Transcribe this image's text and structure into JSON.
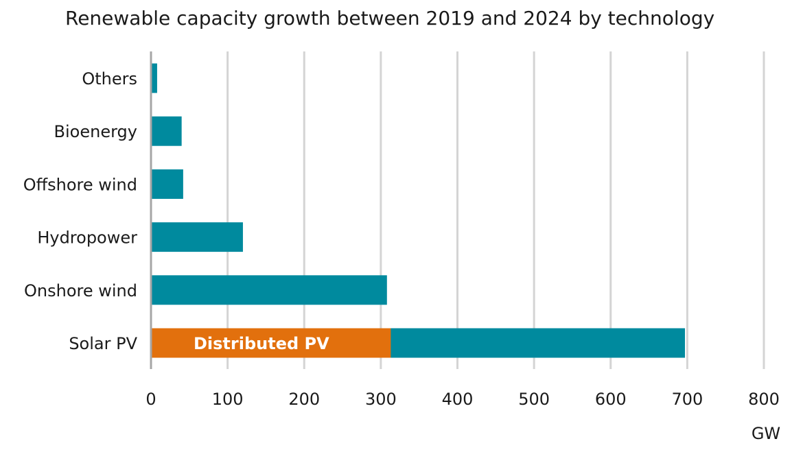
{
  "chart_data": {
    "type": "bar",
    "orientation": "horizontal",
    "stacked": true,
    "title": "Renewable capacity growth between 2019 and 2024 by technology",
    "categories": [
      "Others",
      "Bioenergy",
      "Offshore wind",
      "Hydropower",
      "Onshore wind",
      "Solar PV"
    ],
    "series": [
      {
        "values": [
          8,
          40,
          42,
          120,
          308,
          697
        ],
        "color": "#008a9e"
      }
    ],
    "overlays": [
      {
        "category": "Solar PV",
        "label": "Distributed PV",
        "value": 313,
        "color": "#e2700d"
      }
    ],
    "xlim": [
      0,
      800
    ],
    "xticks": [
      0,
      100,
      200,
      300,
      400,
      500,
      600,
      700,
      800
    ],
    "xunit": "GW",
    "grid": true
  }
}
